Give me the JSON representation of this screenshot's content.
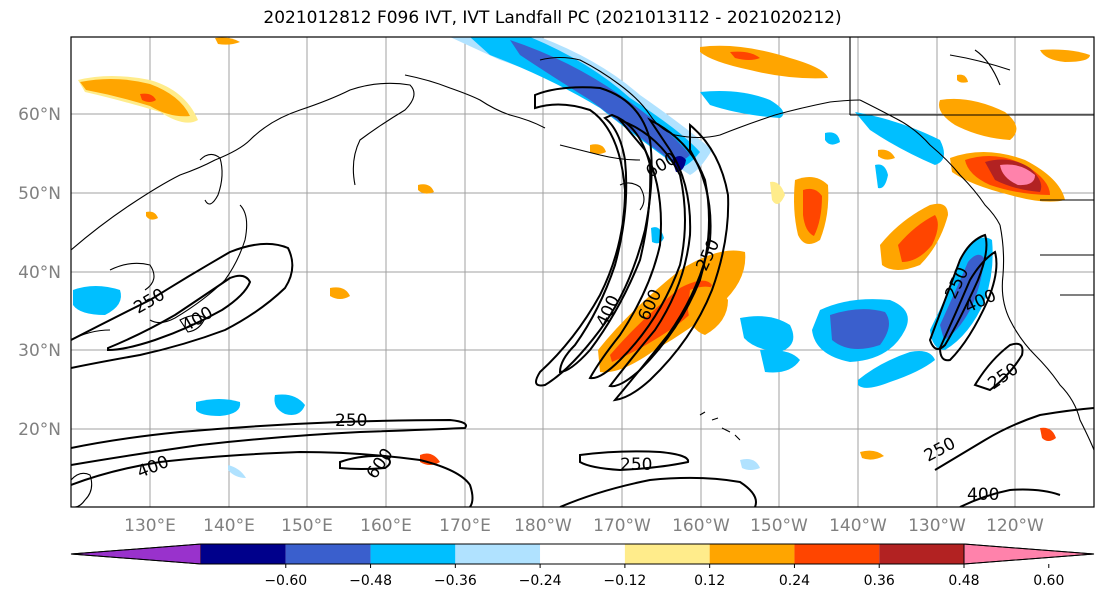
{
  "title": "2021012812 F096 IVT, IVT Landfall PC (2021013112 - 2021020212)",
  "lat_labels": [
    "60°N",
    "50°N",
    "40°N",
    "30°N",
    "20°N"
  ],
  "lon_labels": [
    "130°E",
    "140°E",
    "150°E",
    "160°E",
    "170°E",
    "180°W",
    "170°W",
    "160°W",
    "150°W",
    "140°W",
    "130°W",
    "120°W"
  ],
  "contour_labels": [
    "250",
    "400",
    "600"
  ],
  "colorbar": {
    "ticks": [
      "−0.60",
      "−0.48",
      "−0.36",
      "−0.24",
      "−0.12",
      "0.12",
      "0.24",
      "0.36",
      "0.48",
      "0.60"
    ],
    "colors": {
      "under": "#9932cc",
      "levels": [
        "#00008b",
        "#3a5fcd",
        "#00bfff",
        "#b0e2ff",
        "#ffffff",
        "#ffec8b",
        "#ffa500",
        "#ff4500",
        "#b22222"
      ],
      "over": "#ff82ab"
    }
  }
}
